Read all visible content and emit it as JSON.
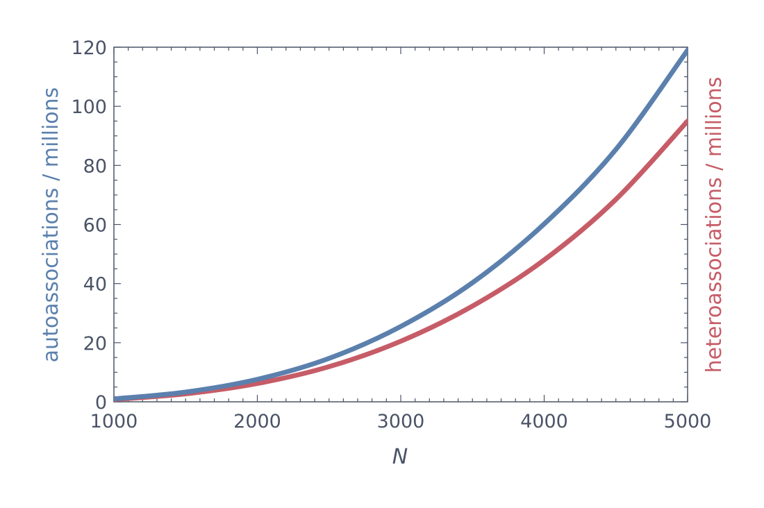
{
  "chart_data": {
    "type": "line",
    "title": "",
    "xlabel": "N",
    "ylabel": "autoassociations / millions",
    "y2label": "heteroassociations / millions",
    "xlim": [
      1000,
      5000
    ],
    "ylim": [
      0,
      120
    ],
    "x_ticks": [
      1000,
      2000,
      3000,
      4000,
      5000
    ],
    "y_ticks": [
      0,
      20,
      40,
      60,
      80,
      100,
      120
    ],
    "grid": false,
    "x": [
      1000,
      1500,
      2000,
      2500,
      3000,
      3500,
      4000,
      4500,
      5000
    ],
    "series": [
      {
        "axis": "left",
        "color": "#5b80ad",
        "values": [
          1.0,
          3.3,
          7.6,
          14.7,
          25.5,
          40.3,
          60.2,
          85.4,
          119.0
        ]
      },
      {
        "axis": "right",
        "color": "#c65c67",
        "values": [
          0.8,
          2.7,
          6.2,
          11.9,
          20.5,
          32.4,
          48.0,
          68.5,
          95.0
        ]
      }
    ]
  }
}
